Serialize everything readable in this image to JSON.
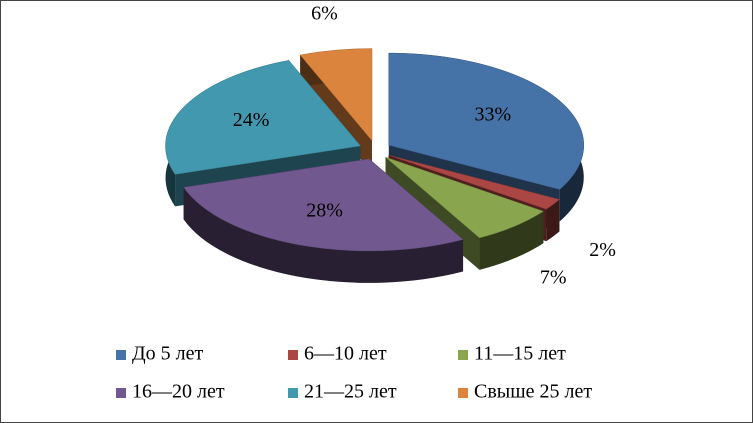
{
  "chart_data": {
    "type": "pie",
    "categories": [
      "До 5 лет",
      "6—10 лет",
      "11—15 лет",
      "16—20 лет",
      "21—25 лет",
      "Свыше 25 лет"
    ],
    "values": [
      33,
      2,
      7,
      28,
      24,
      6
    ],
    "value_labels": [
      "33%",
      "2%",
      "7%",
      "28%",
      "24%",
      "6%"
    ],
    "colors": [
      "#4572A7",
      "#AA4643",
      "#89A54E",
      "#71588F",
      "#4198AF",
      "#DB843D"
    ],
    "legend": "bottom"
  }
}
